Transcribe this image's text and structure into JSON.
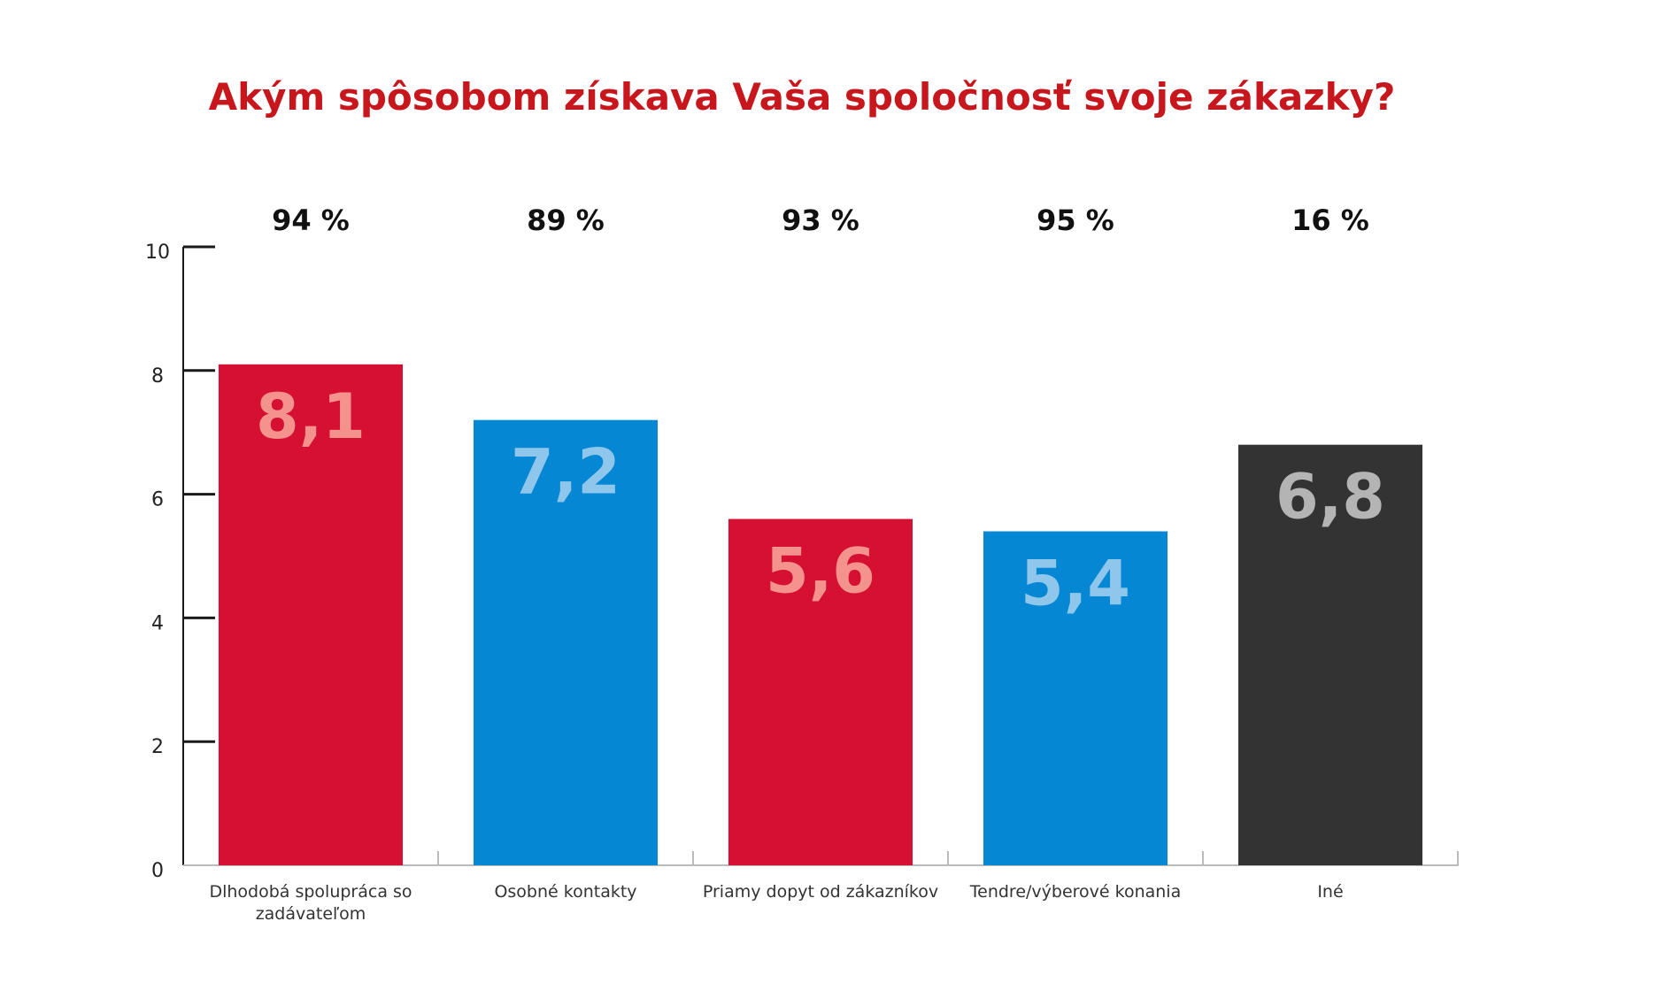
{
  "chart_data": {
    "type": "bar",
    "title": "Akým spôsobom získava Vaša spoločnosť svoje zákazky?",
    "categories": [
      [
        "Dlhodobá spolupráca so",
        "zadávateľom"
      ],
      [
        "Osobné kontakty"
      ],
      [
        "Priamy dopyt od zákazníkov"
      ],
      [
        "Tendre/výberové konania"
      ],
      [
        "Iné"
      ]
    ],
    "values": [
      8.1,
      7.2,
      5.6,
      5.4,
      6.8
    ],
    "value_labels": [
      "8,1",
      "7,2",
      "5,6",
      "5,4",
      "6,8"
    ],
    "percent_labels": [
      "94 %",
      "89 %",
      "93 %",
      "95 %",
      "16 %"
    ],
    "bar_colors": [
      "#d51033",
      "#0687d3",
      "#d51033",
      "#0687d3",
      "#333333"
    ],
    "value_label_colors": [
      "#f4938d",
      "#8ec6ec",
      "#f4938d",
      "#8ec6ec",
      "#b4b4b4"
    ],
    "ylim": [
      0,
      10
    ],
    "yticks": [
      0,
      2,
      4,
      6,
      8,
      10
    ],
    "xlabel": "",
    "ylabel": "",
    "grid": false
  }
}
